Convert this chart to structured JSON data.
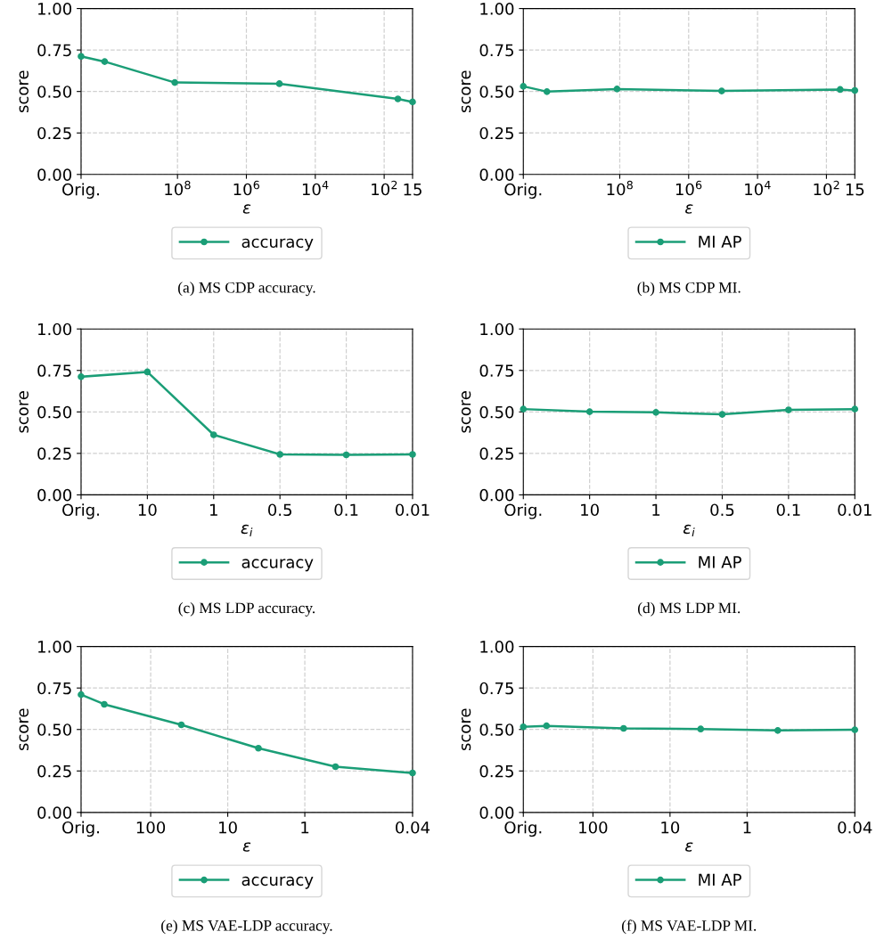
{
  "chart_data": [
    {
      "type": "line",
      "xlabel": "ε",
      "ylabel": "score",
      "log": "x",
      "x": [
        63000000000.0,
        13000000000.0,
        120000000.0,
        110000.0,
        40,
        15
      ],
      "xlim": [
        63000000000.0,
        15
      ],
      "xticks": [
        {
          "value": 63000000000.0,
          "label": "Orig."
        },
        {
          "value": 100000000,
          "label": "10$^{8}$"
        },
        {
          "value": 1000000,
          "label": "10$^{6}$"
        },
        {
          "value": 10000,
          "label": "10$^{4}$"
        },
        {
          "value": 100,
          "label": "10$^{2}$"
        },
        15
      ],
      "ylim": [
        0,
        1
      ],
      "yticks": [
        {
          "value": 0,
          "label": "0.00"
        },
        {
          "value": 0.25,
          "label": "0.25"
        },
        {
          "value": 0.5,
          "label": "0.50"
        },
        {
          "value": 0.75,
          "label": "0.75"
        },
        {
          "value": 1,
          "label": "1.00"
        }
      ],
      "grid": true,
      "legend": "bottom",
      "marker": "circle",
      "line_style": "solid",
      "annotations": [
        "(a) MS CDP accuracy."
      ],
      "series": [
        {
          "name": "accuracy",
          "color": "#1b9e77",
          "values": [
            0.712,
            0.68,
            0.554,
            0.547,
            0.455,
            0.437
          ]
        }
      ]
    },
    {
      "type": "line",
      "xlabel": "ε",
      "ylabel": "score",
      "log": "x",
      "x": [
        63000000000.0,
        13000000000.0,
        120000000.0,
        110000.0,
        40,
        15
      ],
      "xlim": [
        63000000000.0,
        15
      ],
      "xticks": [
        {
          "value": 63000000000.0,
          "label": "Orig."
        },
        {
          "value": 100000000,
          "label": "10$^{8}$"
        },
        {
          "value": 1000000,
          "label": "10$^{6}$"
        },
        {
          "value": 10000,
          "label": "10$^{4}$"
        },
        {
          "value": 100,
          "label": "10$^{2}$"
        },
        15
      ],
      "ylim": [
        0,
        1
      ],
      "yticks": [
        {
          "value": 0,
          "label": "0.00"
        },
        {
          "value": 0.25,
          "label": "0.25"
        },
        {
          "value": 0.5,
          "label": "0.50"
        },
        {
          "value": 0.75,
          "label": "0.75"
        },
        {
          "value": 1,
          "label": "1.00"
        }
      ],
      "grid": true,
      "legend": "bottom",
      "marker": "circle",
      "line_style": "solid",
      "annotations": [
        "(b) MS CDP MI."
      ],
      "series": [
        {
          "name": "MI AP",
          "color": "#1b9e77",
          "values": [
            0.531,
            0.499,
            0.515,
            0.503,
            0.512,
            0.506
          ]
        }
      ]
    },
    {
      "type": "line",
      "xlabel": "ε$_{i}$",
      "ylabel": "score",
      "categories": [
        "Orig.",
        "10",
        "1",
        "0.5",
        "0.1",
        "0.01"
      ],
      "ylim": [
        0,
        1
      ],
      "yticks": [
        {
          "value": 0,
          "label": "0.00"
        },
        {
          "value": 0.25,
          "label": "0.25"
        },
        {
          "value": 0.5,
          "label": "0.50"
        },
        {
          "value": 0.75,
          "label": "0.75"
        },
        {
          "value": 1,
          "label": "1.00"
        }
      ],
      "grid": true,
      "legend": "bottom",
      "marker": "circle",
      "line_style": "solid",
      "annotations": [
        "(c) MS LDP accuracy."
      ],
      "series": [
        {
          "name": "accuracy",
          "color": "#1b9e77",
          "values": [
            0.712,
            0.741,
            0.362,
            0.244,
            0.241,
            0.244
          ]
        }
      ]
    },
    {
      "type": "line",
      "xlabel": "ε$_{i}$",
      "ylabel": "score",
      "categories": [
        "Orig.",
        "10",
        "1",
        "0.5",
        "0.1",
        "0.01"
      ],
      "ylim": [
        0,
        1
      ],
      "yticks": [
        {
          "value": 0,
          "label": "0.00"
        },
        {
          "value": 0.25,
          "label": "0.25"
        },
        {
          "value": 0.5,
          "label": "0.50"
        },
        {
          "value": 0.75,
          "label": "0.75"
        },
        {
          "value": 1,
          "label": "1.00"
        }
      ],
      "grid": true,
      "legend": "bottom",
      "marker": "circle",
      "line_style": "solid",
      "annotations": [
        "(d) MS LDP MI."
      ],
      "series": [
        {
          "name": "MI AP",
          "color": "#1b9e77",
          "values": [
            0.517,
            0.501,
            0.497,
            0.485,
            0.512,
            0.517
          ]
        }
      ]
    },
    {
      "type": "line",
      "xlabel": "ε",
      "ylabel": "score",
      "log": "x",
      "x": [
        800,
        400,
        40,
        4,
        0.4,
        0.04
      ],
      "xlim": [
        800,
        0.04
      ],
      "xticks": [
        {
          "value": 800,
          "label": "Orig."
        },
        100,
        10,
        1,
        0.04
      ],
      "ylim": [
        0,
        1
      ],
      "yticks": [
        {
          "value": 0,
          "label": "0.00"
        },
        {
          "value": 0.25,
          "label": "0.25"
        },
        {
          "value": 0.5,
          "label": "0.50"
        },
        {
          "value": 0.75,
          "label": "0.75"
        },
        {
          "value": 1,
          "label": "1.00"
        }
      ],
      "grid": true,
      "legend": "bottom",
      "marker": "circle",
      "line_style": "solid",
      "annotations": [
        "(e) MS VAE-LDP accuracy."
      ],
      "series": [
        {
          "name": "accuracy",
          "color": "#1b9e77",
          "values": [
            0.71,
            0.652,
            0.528,
            0.387,
            0.276,
            0.238
          ]
        }
      ]
    },
    {
      "type": "line",
      "xlabel": "ε",
      "ylabel": "score",
      "log": "x",
      "x": [
        800,
        400,
        40,
        4,
        0.4,
        0.04
      ],
      "xlim": [
        800,
        0.04
      ],
      "xticks": [
        {
          "value": 800,
          "label": "Orig."
        },
        100,
        10,
        1,
        0.04
      ],
      "ylim": [
        0,
        1
      ],
      "yticks": [
        {
          "value": 0,
          "label": "0.00"
        },
        {
          "value": 0.25,
          "label": "0.25"
        },
        {
          "value": 0.5,
          "label": "0.50"
        },
        {
          "value": 0.75,
          "label": "0.75"
        },
        {
          "value": 1,
          "label": "1.00"
        }
      ],
      "grid": true,
      "legend": "bottom",
      "marker": "circle",
      "line_style": "solid",
      "annotations": [
        "(f) MS VAE-LDP MI."
      ],
      "series": [
        {
          "name": "MI AP",
          "color": "#1b9e77",
          "values": [
            0.516,
            0.522,
            0.507,
            0.503,
            0.494,
            0.498
          ]
        }
      ]
    }
  ]
}
